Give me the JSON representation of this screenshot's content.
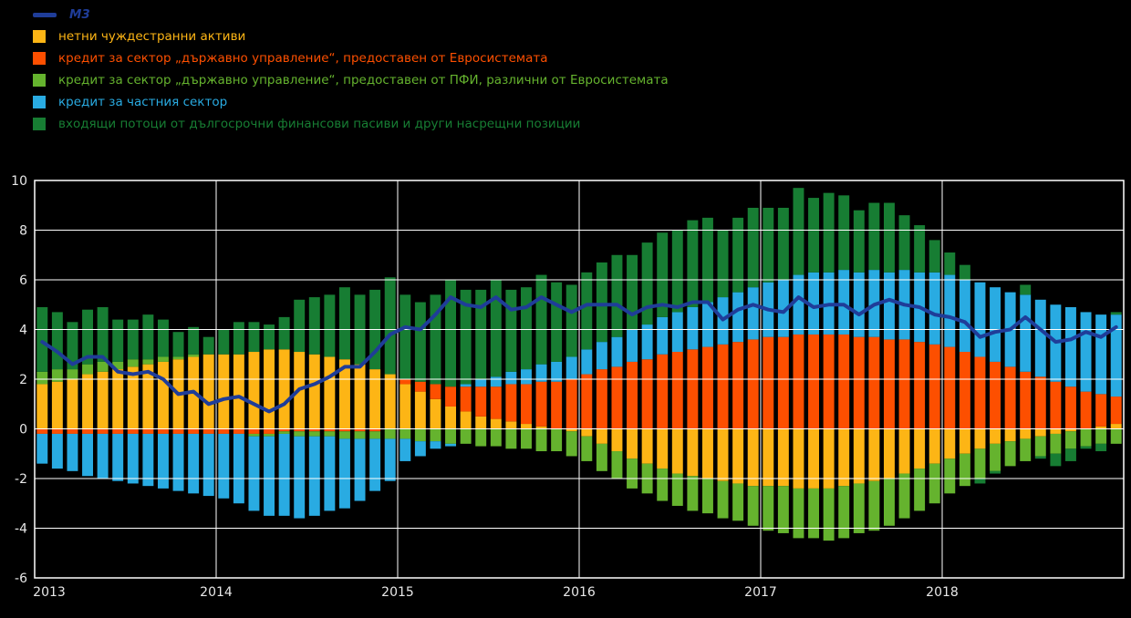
{
  "colors": {
    "background": "#000000",
    "grid": "#ffffff",
    "tick_text": "#e8e8e8"
  },
  "chart_data": {
    "type": "bar",
    "subtype": "stacked-monthly-contributions-with-line",
    "frequency": "monthly",
    "grid": true,
    "legend_position": "top-left",
    "ylim": [
      -6,
      10
    ],
    "yticks": [
      10,
      8,
      6,
      4,
      2,
      0,
      -2,
      -4,
      -6
    ],
    "year_labels": [
      "2013",
      "2014",
      "2015",
      "2016",
      "2017",
      "2018"
    ],
    "line_series": {
      "name": "М3",
      "color": "#1f3d99",
      "values": [
        3.5,
        3.1,
        2.6,
        2.9,
        2.9,
        2.3,
        2.2,
        2.3,
        2.0,
        1.4,
        1.5,
        1.0,
        1.2,
        1.3,
        1.0,
        0.7,
        1.0,
        1.6,
        1.8,
        2.1,
        2.5,
        2.5,
        3.1,
        3.8,
        4.1,
        4.0,
        4.6,
        5.3,
        5.0,
        4.9,
        5.3,
        4.8,
        4.9,
        5.3,
        5.0,
        4.7,
        5.0,
        5.0,
        5.0,
        4.6,
        4.9,
        5.0,
        4.9,
        5.1,
        5.1,
        4.4,
        4.8,
        5.0,
        4.8,
        4.7,
        5.3,
        4.9,
        5.0,
        5.0,
        4.6,
        5.0,
        5.2,
        5.0,
        4.9,
        4.6,
        4.5,
        4.3,
        3.7,
        3.9,
        4.0,
        4.5,
        4.0,
        3.5,
        3.6,
        3.9,
        3.7,
        4.1
      ]
    },
    "series": [
      {
        "name": "нетни чуждестранни активи",
        "color": "#fdb515",
        "values": [
          1.8,
          1.9,
          2.0,
          2.2,
          2.3,
          2.4,
          2.5,
          2.6,
          2.7,
          2.8,
          2.9,
          3.0,
          3.0,
          3.0,
          3.1,
          3.2,
          3.2,
          3.1,
          3.0,
          2.9,
          2.8,
          2.6,
          2.4,
          2.2,
          1.8,
          1.5,
          1.2,
          0.9,
          0.7,
          0.5,
          0.4,
          0.3,
          0.2,
          0.1,
          0.0,
          -0.1,
          -0.3,
          -0.6,
          -0.9,
          -1.2,
          -1.4,
          -1.6,
          -1.8,
          -1.9,
          -2.0,
          -2.1,
          -2.2,
          -2.3,
          -2.3,
          -2.3,
          -2.4,
          -2.4,
          -2.4,
          -2.3,
          -2.2,
          -2.1,
          -2.0,
          -1.8,
          -1.6,
          -1.4,
          -1.2,
          -1.0,
          -0.8,
          -0.6,
          -0.5,
          -0.4,
          -0.3,
          -0.2,
          -0.1,
          0.0,
          0.1,
          0.2
        ]
      },
      {
        "name": "кредит за сектор „държавно управление“, предоставен от Евросистемата",
        "color": "#fd4f00",
        "values": [
          -0.2,
          -0.2,
          -0.2,
          -0.2,
          -0.2,
          -0.2,
          -0.2,
          -0.2,
          -0.2,
          -0.2,
          -0.2,
          -0.2,
          -0.2,
          -0.2,
          -0.2,
          -0.2,
          -0.1,
          -0.1,
          -0.1,
          -0.1,
          -0.1,
          -0.1,
          -0.1,
          0.0,
          0.2,
          0.4,
          0.6,
          0.8,
          1.0,
          1.2,
          1.3,
          1.5,
          1.6,
          1.8,
          1.9,
          2.0,
          2.2,
          2.4,
          2.5,
          2.7,
          2.8,
          3.0,
          3.1,
          3.2,
          3.3,
          3.4,
          3.5,
          3.6,
          3.7,
          3.7,
          3.8,
          3.8,
          3.8,
          3.8,
          3.7,
          3.7,
          3.6,
          3.6,
          3.5,
          3.4,
          3.3,
          3.1,
          2.9,
          2.7,
          2.5,
          2.3,
          2.1,
          1.9,
          1.7,
          1.5,
          1.3,
          1.1
        ]
      },
      {
        "name": "кредит за сектор „държавно управление“, предоставен от ПФИ, различни от Евросистемата",
        "color": "#65b32e",
        "values": [
          0.5,
          0.5,
          0.4,
          0.4,
          0.4,
          0.3,
          0.3,
          0.2,
          0.2,
          0.1,
          0.1,
          0.0,
          0.0,
          0.0,
          -0.1,
          -0.1,
          -0.1,
          -0.2,
          -0.2,
          -0.2,
          -0.3,
          -0.3,
          -0.3,
          -0.4,
          -0.4,
          -0.5,
          -0.5,
          -0.6,
          -0.6,
          -0.7,
          -0.7,
          -0.8,
          -0.8,
          -0.9,
          -0.9,
          -1.0,
          -1.0,
          -1.1,
          -1.1,
          -1.2,
          -1.2,
          -1.3,
          -1.3,
          -1.4,
          -1.4,
          -1.5,
          -1.5,
          -1.6,
          -1.8,
          -1.9,
          -2.0,
          -2.0,
          -2.1,
          -2.1,
          -2.0,
          -2.0,
          -1.9,
          -1.8,
          -1.7,
          -1.6,
          -1.4,
          -1.3,
          -1.2,
          -1.1,
          -1.0,
          -0.9,
          -0.8,
          -0.8,
          -0.7,
          -0.7,
          -0.6,
          -0.6
        ]
      },
      {
        "name": "кредит за частния сектор",
        "color": "#29abe2",
        "values": [
          -1.2,
          -1.4,
          -1.5,
          -1.7,
          -1.8,
          -1.9,
          -2.0,
          -2.1,
          -2.2,
          -2.3,
          -2.4,
          -2.5,
          -2.6,
          -2.8,
          -3.0,
          -3.2,
          -3.3,
          -3.3,
          -3.2,
          -3.0,
          -2.8,
          -2.5,
          -2.1,
          -1.7,
          -0.9,
          -0.6,
          -0.3,
          -0.1,
          0.1,
          0.3,
          0.4,
          0.5,
          0.6,
          0.7,
          0.8,
          0.9,
          1.0,
          1.1,
          1.2,
          1.3,
          1.4,
          1.5,
          1.6,
          1.7,
          1.8,
          1.9,
          2.0,
          2.1,
          2.2,
          2.3,
          2.4,
          2.5,
          2.5,
          2.6,
          2.6,
          2.7,
          2.7,
          2.8,
          2.8,
          2.9,
          2.9,
          2.9,
          3.0,
          3.0,
          3.0,
          3.1,
          3.1,
          3.1,
          3.2,
          3.2,
          3.2,
          3.3
        ]
      },
      {
        "name": "входящи потоци от дългосрочни финансови пасиви и други насрещни позиции",
        "color": "#177d33",
        "values": [
          2.6,
          2.3,
          1.9,
          2.2,
          2.2,
          1.7,
          1.6,
          1.8,
          1.5,
          1.0,
          1.1,
          0.7,
          1.0,
          1.3,
          1.2,
          1.0,
          1.3,
          2.1,
          2.3,
          2.5,
          2.9,
          2.8,
          3.2,
          3.9,
          3.4,
          3.2,
          3.6,
          4.3,
          3.8,
          3.6,
          3.9,
          3.3,
          3.3,
          3.6,
          3.2,
          2.9,
          3.1,
          3.2,
          3.3,
          3.0,
          3.3,
          3.4,
          3.3,
          3.5,
          3.4,
          2.7,
          3.0,
          3.2,
          3.0,
          2.9,
          3.5,
          3.0,
          3.2,
          3.0,
          2.5,
          2.7,
          2.8,
          2.2,
          1.9,
          1.3,
          0.9,
          0.6,
          -0.2,
          -0.1,
          0.0,
          0.4,
          -0.1,
          -0.5,
          -0.5,
          -0.1,
          -0.3,
          0.1
        ]
      }
    ]
  }
}
